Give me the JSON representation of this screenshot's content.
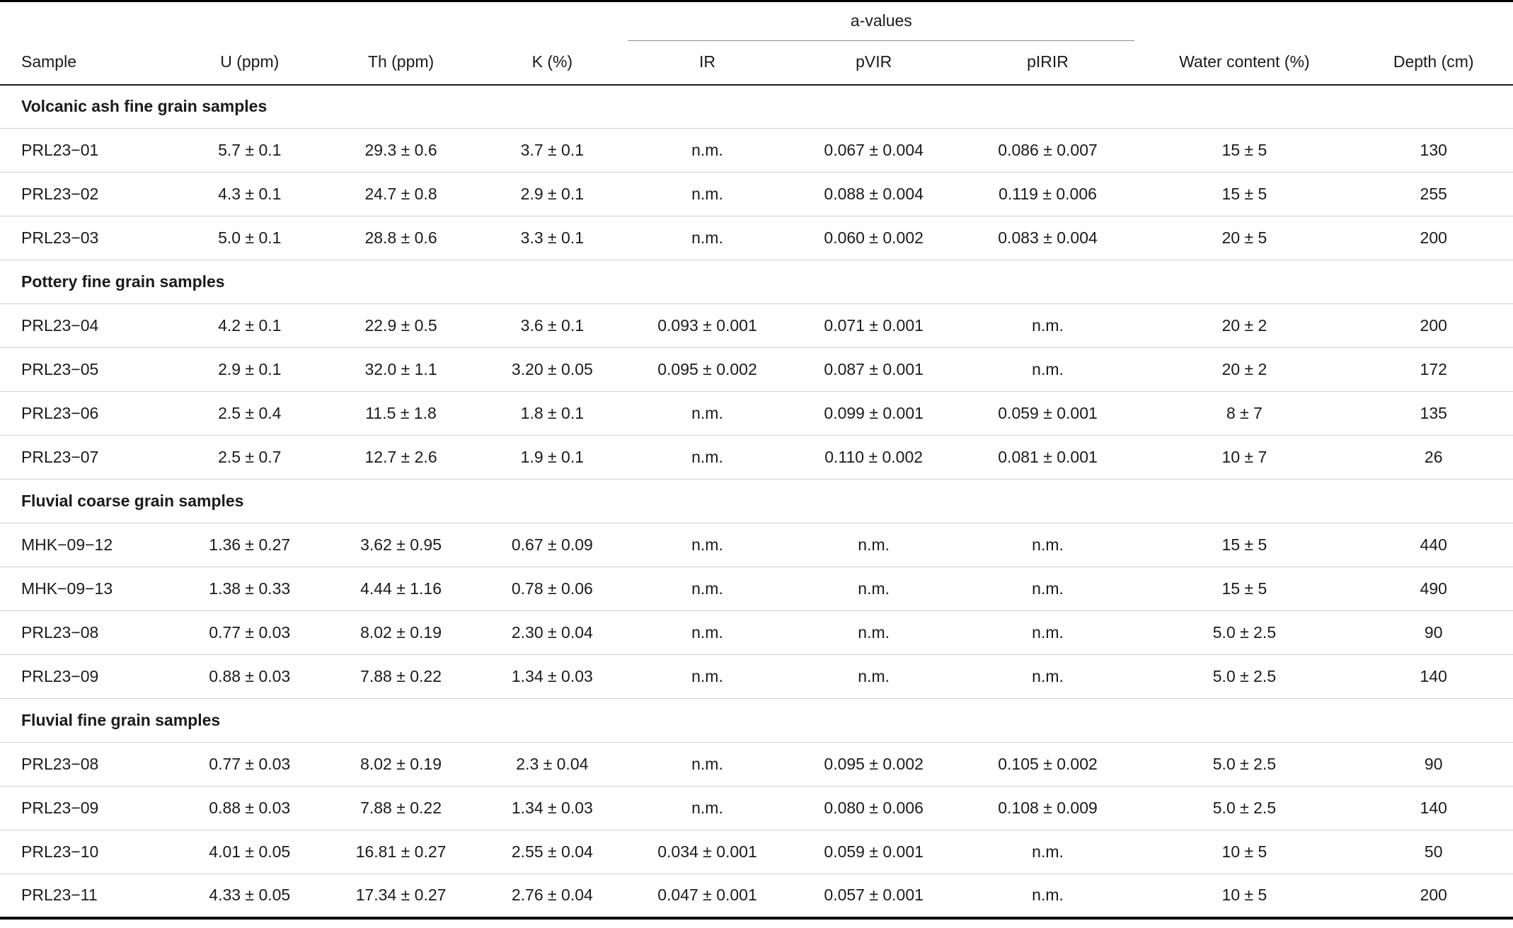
{
  "table": {
    "spanner_label": "a-values",
    "columns": [
      "Sample",
      "U (ppm)",
      "Th (ppm)",
      "K (%)",
      "IR",
      "pVIR",
      "pIRIR",
      "Water content (%)",
      "Depth (cm)"
    ],
    "sections": [
      {
        "title": "Volcanic ash fine grain samples",
        "rows": [
          [
            "PRL23−01",
            "5.7 ± 0.1",
            "29.3 ± 0.6",
            "3.7 ± 0.1",
            "n.m.",
            "0.067 ± 0.004",
            "0.086 ± 0.007",
            "15 ± 5",
            "130"
          ],
          [
            "PRL23−02",
            "4.3 ± 0.1",
            "24.7 ± 0.8",
            "2.9 ± 0.1",
            "n.m.",
            "0.088 ± 0.004",
            "0.119 ± 0.006",
            "15 ± 5",
            "255"
          ],
          [
            "PRL23−03",
            "5.0 ± 0.1",
            "28.8 ± 0.6",
            "3.3 ± 0.1",
            "n.m.",
            "0.060 ± 0.002",
            "0.083 ± 0.004",
            "20 ± 5",
            "200"
          ]
        ]
      },
      {
        "title": "Pottery fine grain samples",
        "rows": [
          [
            "PRL23−04",
            "4.2 ± 0.1",
            "22.9 ± 0.5",
            "3.6 ± 0.1",
            "0.093 ± 0.001",
            "0.071 ± 0.001",
            "n.m.",
            "20 ± 2",
            "200"
          ],
          [
            "PRL23−05",
            "2.9 ± 0.1",
            "32.0 ± 1.1",
            "3.20 ± 0.05",
            "0.095 ± 0.002",
            "0.087 ± 0.001",
            "n.m.",
            "20 ± 2",
            "172"
          ],
          [
            "PRL23−06",
            "2.5 ± 0.4",
            "11.5 ± 1.8",
            "1.8 ± 0.1",
            "n.m.",
            "0.099 ± 0.001",
            "0.059 ± 0.001",
            "8 ± 7",
            "135"
          ],
          [
            "PRL23−07",
            "2.5 ± 0.7",
            "12.7 ± 2.6",
            "1.9 ± 0.1",
            "n.m.",
            "0.110 ± 0.002",
            "0.081 ± 0.001",
            "10 ± 7",
            "26"
          ]
        ]
      },
      {
        "title": "Fluvial coarse grain samples",
        "rows": [
          [
            "MHK−09−12",
            "1.36 ± 0.27",
            "3.62 ± 0.95",
            "0.67 ± 0.09",
            "n.m.",
            "n.m.",
            "n.m.",
            "15 ± 5",
            "440"
          ],
          [
            "MHK−09−13",
            "1.38 ± 0.33",
            "4.44 ± 1.16",
            "0.78 ± 0.06",
            "n.m.",
            "n.m.",
            "n.m.",
            "15 ± 5",
            "490"
          ],
          [
            "PRL23−08",
            "0.77 ± 0.03",
            "8.02 ± 0.19",
            "2.30 ± 0.04",
            "n.m.",
            "n.m.",
            "n.m.",
            "5.0 ± 2.5",
            "90"
          ],
          [
            "PRL23−09",
            "0.88 ± 0.03",
            "7.88 ± 0.22",
            "1.34 ± 0.03",
            "n.m.",
            "n.m.",
            "n.m.",
            "5.0 ± 2.5",
            "140"
          ]
        ]
      },
      {
        "title": "Fluvial fine grain samples",
        "rows": [
          [
            "PRL23−08",
            "0.77 ± 0.03",
            "8.02 ± 0.19",
            "2.3 ± 0.04",
            "n.m.",
            "0.095 ± 0.002",
            "0.105 ± 0.002",
            "5.0 ± 2.5",
            "90"
          ],
          [
            "PRL23−09",
            "0.88 ± 0.03",
            "7.88 ± 0.22",
            "1.34 ± 0.03",
            "n.m.",
            "0.080 ± 0.006",
            "0.108 ± 0.009",
            "5.0 ± 2.5",
            "140"
          ],
          [
            "PRL23−10",
            "4.01 ± 0.05",
            "16.81 ± 0.27",
            "2.55 ± 0.04",
            "0.034 ± 0.001",
            "0.059 ± 0.001",
            "n.m.",
            "10 ± 5",
            "50"
          ],
          [
            "PRL23−11",
            "4.33 ± 0.05",
            "17.34 ± 0.27",
            "2.76 ± 0.04",
            "0.047 ± 0.001",
            "0.057 ± 0.001",
            "n.m.",
            "10 ± 5",
            "200"
          ]
        ]
      }
    ]
  }
}
